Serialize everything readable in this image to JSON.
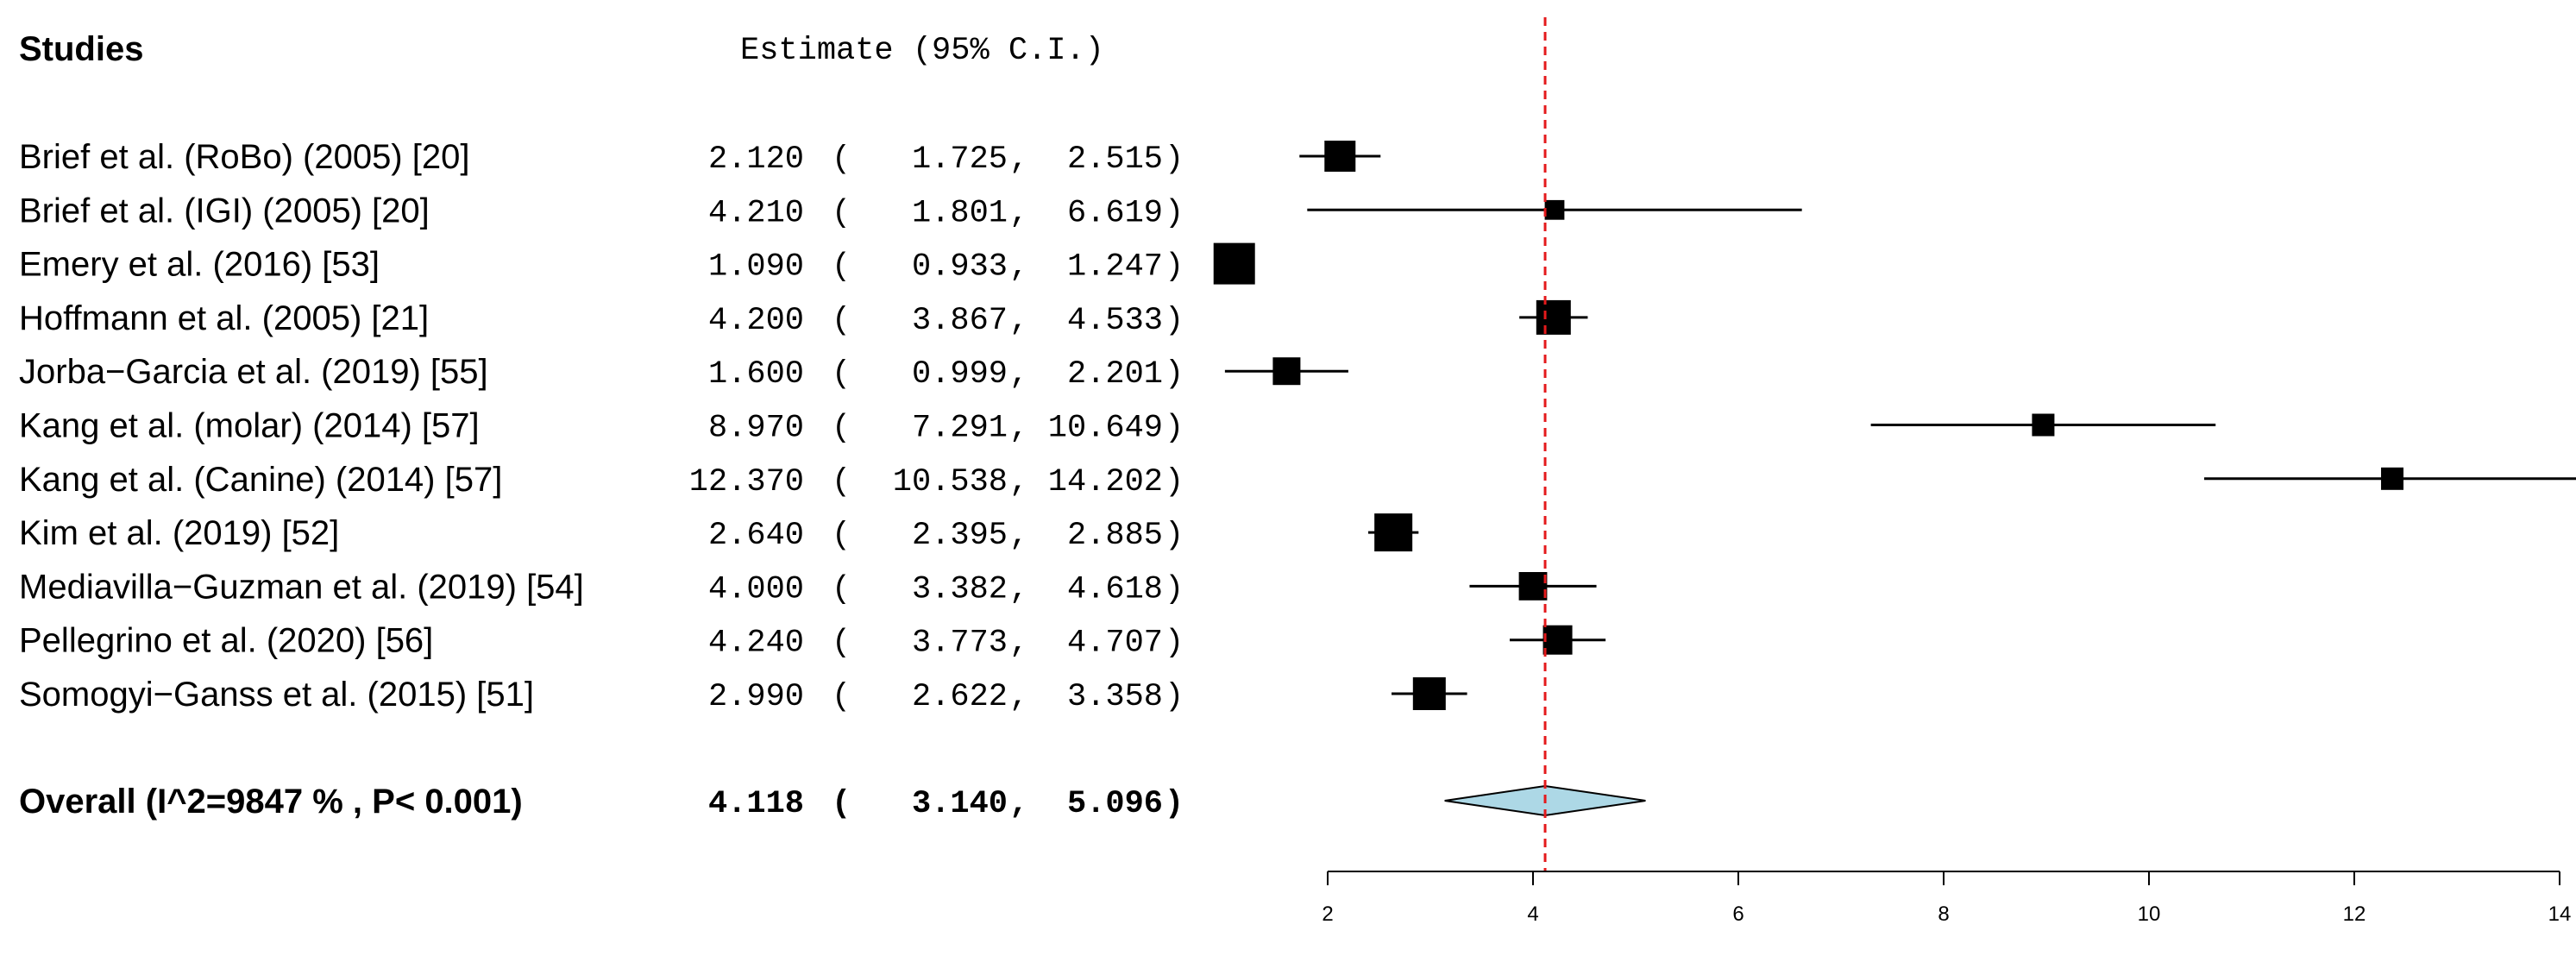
{
  "chart_data": {
    "type": "forest",
    "header": {
      "studies": "Studies",
      "estimate": "Estimate (95% C.I.)"
    },
    "studies": [
      {
        "name": "Brief et al. (RoBo) (2005) [20]",
        "estimate": 2.12,
        "lower": 1.725,
        "upper": 2.515,
        "estimate_text": "2.120",
        "lower_text": "1.725",
        "upper_text": "2.515",
        "weight": 0.55
      },
      {
        "name": "Brief et al. (IGI) (2005) [20]",
        "estimate": 4.21,
        "lower": 1.801,
        "upper": 6.619,
        "estimate_text": "4.210",
        "lower_text": "1.801",
        "upper_text": "6.619",
        "weight": 0.22
      },
      {
        "name": "Emery et al.  (2016) [53]",
        "estimate": 1.09,
        "lower": 0.933,
        "upper": 1.247,
        "estimate_text": "1.090",
        "lower_text": "0.933",
        "upper_text": "1.247",
        "weight": 0.85
      },
      {
        "name": "Hoffmann et al. (2005) [21]",
        "estimate": 4.2,
        "lower": 3.867,
        "upper": 4.533,
        "estimate_text": "4.200",
        "lower_text": "3.867",
        "upper_text": "4.533",
        "weight": 0.65
      },
      {
        "name": "Jorba−Garcia et al. (2019) [55]",
        "estimate": 1.6,
        "lower": 0.999,
        "upper": 2.201,
        "estimate_text": "1.600",
        "lower_text": "0.999",
        "upper_text": "2.201",
        "weight": 0.45
      },
      {
        "name": "Kang et al. (molar) (2014) [57]",
        "estimate": 8.97,
        "lower": 7.291,
        "upper": 10.649,
        "estimate_text": "8.970",
        "lower_text": "7.291",
        "upper_text": "10.649",
        "weight": 0.3
      },
      {
        "name": "Kang et al. (Canine) (2014) [57]",
        "estimate": 12.37,
        "lower": 10.538,
        "upper": 14.202,
        "estimate_text": "12.370",
        "lower_text": "10.538",
        "upper_text": "14.202",
        "weight": 0.3
      },
      {
        "name": "Kim et al. (2019) [52]",
        "estimate": 2.64,
        "lower": 2.395,
        "upper": 2.885,
        "estimate_text": "2.640",
        "lower_text": "2.395",
        "upper_text": "2.885",
        "weight": 0.75
      },
      {
        "name": "Mediavilla−Guzman et al. (2019) [54]",
        "estimate": 4.0,
        "lower": 3.382,
        "upper": 4.618,
        "estimate_text": "4.000",
        "lower_text": "3.382",
        "upper_text": "4.618",
        "weight": 0.47
      },
      {
        "name": "Pellegrino et al. (2020) [56]",
        "estimate": 4.24,
        "lower": 3.773,
        "upper": 4.707,
        "estimate_text": "4.240",
        "lower_text": "3.773",
        "upper_text": "4.707",
        "weight": 0.5
      },
      {
        "name": "Somogyi−Ganss et al. (2015) [51]",
        "estimate": 2.99,
        "lower": 2.622,
        "upper": 3.358,
        "estimate_text": "2.990",
        "lower_text": "2.622",
        "upper_text": "3.358",
        "weight": 0.6
      }
    ],
    "overall": {
      "name": "Overall (I^2=9847 % , P< 0.001)",
      "estimate": 4.118,
      "lower": 3.14,
      "upper": 5.096,
      "estimate_text": "4.118",
      "lower_text": "3.140",
      "upper_text": "5.096"
    },
    "x_axis": {
      "ticks": [
        2,
        4,
        6,
        8,
        10,
        12,
        14
      ],
      "range": [
        2,
        14
      ]
    },
    "reference_line": {
      "value": 4.118,
      "color": "#e41a1c",
      "style": "dashed"
    },
    "colors": {
      "diamond_fill": "#add8e6",
      "marker": "#000000"
    },
    "grid": false
  }
}
